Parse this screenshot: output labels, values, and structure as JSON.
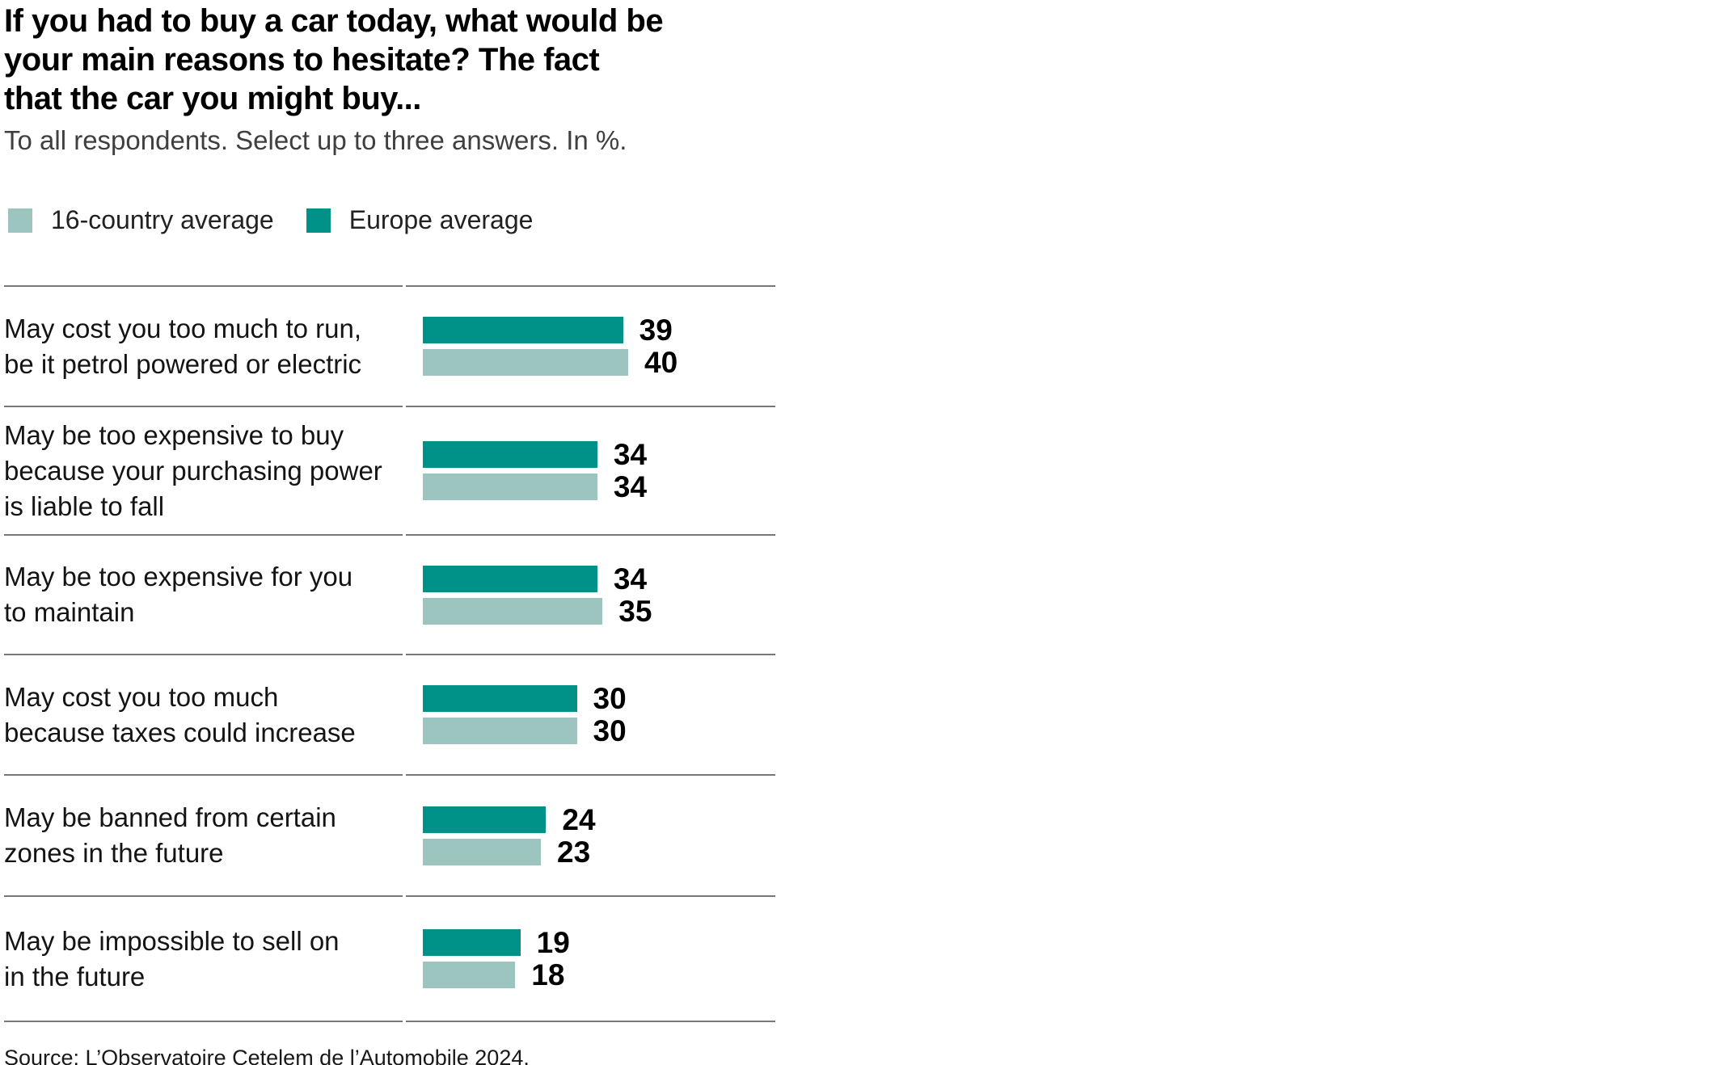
{
  "title": "If you had to buy a car today, what would be\nyour main reasons to hesitate? The fact\nthat the car you might buy...",
  "subtitle": "To all respondents. Select up to three answers. In %.",
  "legend": [
    {
      "label": "16-country average",
      "color": "#9CC5C0"
    },
    {
      "label": "Europe average",
      "color": "#009189"
    }
  ],
  "colors": {
    "europe_average": "#009189",
    "country_average": "#9CC5C0",
    "divider": "#777777"
  },
  "chart_data": {
    "type": "bar",
    "orientation": "horizontal",
    "title": "If you had to buy a car today, what would be your main reasons to hesitate? The fact that the car you might buy...",
    "subtitle": "To all respondents. Select up to three answers. In %.",
    "categories": [
      "May cost you too much to run,\nbe it petrol powered or electric",
      "May be too expensive to buy\nbecause your purchasing power\nis liable to fall",
      "May be too expensive for you\nto maintain",
      "May cost you too much\nbecause taxes could increase",
      "May be banned from certain\nzones in the future",
      "May be impossible to sell on\nin the future"
    ],
    "series": [
      {
        "name": "Europe average",
        "color": "#009189",
        "values": [
          39,
          34,
          34,
          30,
          24,
          19
        ]
      },
      {
        "name": "16-country average",
        "color": "#9CC5C0",
        "values": [
          40,
          34,
          35,
          30,
          23,
          18
        ]
      }
    ],
    "xlim": [
      0,
      40
    ],
    "value_labels": true,
    "grid": false,
    "legend_position": "top"
  },
  "source": "Source: L’Observatoire Cetelem de l’Automobile 2024."
}
